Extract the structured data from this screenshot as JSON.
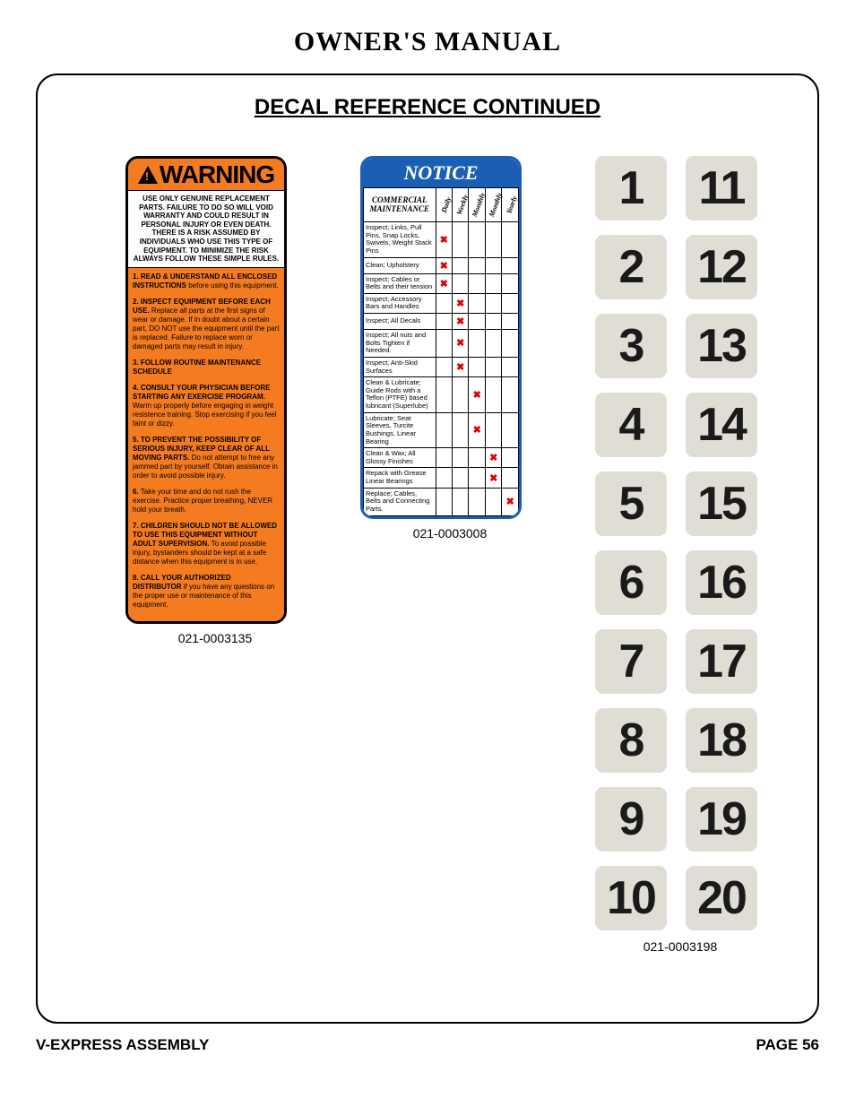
{
  "page": {
    "title": "OWNER'S MANUAL",
    "section_title": "DECAL REFERENCE CONTINUED",
    "footer_left": "V-EXPRESS ASSEMBLY",
    "footer_right": "PAGE 56"
  },
  "warning_decal": {
    "header": "WARNING",
    "intro": "USE ONLY GENUINE REPLACEMENT PARTS. FAILURE TO DO SO WILL VOID WARRANTY AND COULD RESULT IN PERSONAL INJURY OR EVEN DEATH. THERE IS A RISK ASSUMED BY INDIVIDUALS WHO USE THIS TYPE OF EQUIPMENT. TO MINIMIZE THE RISK ALWAYS FOLLOW THESE SIMPLE RULES.",
    "items": [
      {
        "lead": "1. READ & UNDERSTAND ALL ENCLOSED INSTRUCTIONS",
        "rest": " before using this equipment."
      },
      {
        "lead": "2. INSPECT EQUIPMENT BEFORE EACH USE.",
        "rest": " Replace all parts at the first signs of wear or damage. If in doubt about a certain part, DO NOT use the equipment until the part is replaced. Failure to replace worn or damaged parts may result in injury."
      },
      {
        "lead": "3. FOLLOW ROUTINE MAINTENANCE SCHEDULE",
        "rest": ""
      },
      {
        "lead": "4. CONSULT YOUR PHYSICIAN BEFORE STARTING ANY EXERCISE PROGRAM.",
        "rest": " Warm up properly before engaging in weight resistence training. Stop exercising if you feel faint or dizzy."
      },
      {
        "lead": "5. TO PREVENT THE POSSIBILITY OF SERIOUS INJURY, KEEP CLEAR OF ALL MOVING PARTS.",
        "rest": " Do not attempt to free any jammed part by yourself. Obtain assistance in order to avoid possible injury."
      },
      {
        "lead": "6.",
        "rest": " Take your time and do not rush the exercise. Practice proper breathing, NEVER hold your breath."
      },
      {
        "lead": "7. CHILDREN SHOULD NOT BE ALLOWED TO USE THIS EQUIPMENT WITHOUT ADULT SUPERVISION.",
        "rest": " To avoid possible injury, bystanders should be kept at a safe distance when this equipment is in use."
      },
      {
        "lead": "8. CALL YOUR AUTHORIZED DISTRIBUTOR",
        "rest": " if you have any questions on the proper use or maintenance of this equipment."
      }
    ],
    "part_number": "021-0003135",
    "colors": {
      "header_bg": "#f47b20",
      "body_bg": "#f47b20",
      "border": "#000000"
    }
  },
  "notice_decal": {
    "header": "NOTICE",
    "table_header": {
      "task": "COMMERCIAL MAINTENANCE",
      "cols": [
        "Daily",
        "Weekly",
        "Monthly",
        "Monthly",
        "Yearly"
      ]
    },
    "rows": [
      {
        "task": "Inspect; Links, Pull Pins, Snap Locks, Swivels, Weight Stack Pins",
        "marks": [
          "x",
          "",
          "",
          "",
          ""
        ]
      },
      {
        "task": "Clean; Upholstery",
        "marks": [
          "x",
          "",
          "",
          "",
          ""
        ]
      },
      {
        "task": "Inspect; Cables or Belts and their tension",
        "marks": [
          "x",
          "",
          "",
          "",
          ""
        ]
      },
      {
        "task": "Inspect; Accessory Bars and Handles",
        "marks": [
          "",
          "x",
          "",
          "",
          ""
        ]
      },
      {
        "task": "Inspect; All Decals",
        "marks": [
          "",
          "x",
          "",
          "",
          ""
        ]
      },
      {
        "task": "Inspect; All nuts and Bolts Tighten if Needed.",
        "marks": [
          "",
          "x",
          "",
          "",
          ""
        ]
      },
      {
        "task": "Inspect; Anti-Skid Surfaces",
        "marks": [
          "",
          "x",
          "",
          "",
          ""
        ]
      },
      {
        "task": "Clean & Lubricate; Guide Rods with a Teflon (PTFE) based lubricant (Superlube)",
        "marks": [
          "",
          "",
          "x",
          "",
          ""
        ]
      },
      {
        "task": "Lubricate; Seat Sleeves, Turcite Bushings, Linear Bearing",
        "marks": [
          "",
          "",
          "x",
          "",
          ""
        ]
      },
      {
        "task": "Clean & Wax; All Glossy Finishes",
        "marks": [
          "",
          "",
          "",
          "x",
          ""
        ]
      },
      {
        "task": "Repack with Grease Linear Bearings",
        "marks": [
          "",
          "",
          "",
          "x",
          ""
        ]
      },
      {
        "task": "Replace; Cables, Belts and Connecting Parts.",
        "marks": [
          "",
          "",
          "",
          "",
          "x"
        ]
      }
    ],
    "part_number": "021-0003008",
    "colors": {
      "header_bg": "#1a5fb4",
      "border": "#1a5fb4",
      "mark_color": "#d00"
    }
  },
  "number_decals": {
    "left": [
      "1",
      "2",
      "3",
      "4",
      "5",
      "6",
      "7",
      "8",
      "9",
      "10"
    ],
    "right": [
      "11",
      "12",
      "13",
      "14",
      "15",
      "16",
      "17",
      "18",
      "19",
      "20"
    ],
    "part_number": "021-0003198",
    "tile_bg": "#e0ddd4",
    "text_color": "#1a1a1a"
  }
}
